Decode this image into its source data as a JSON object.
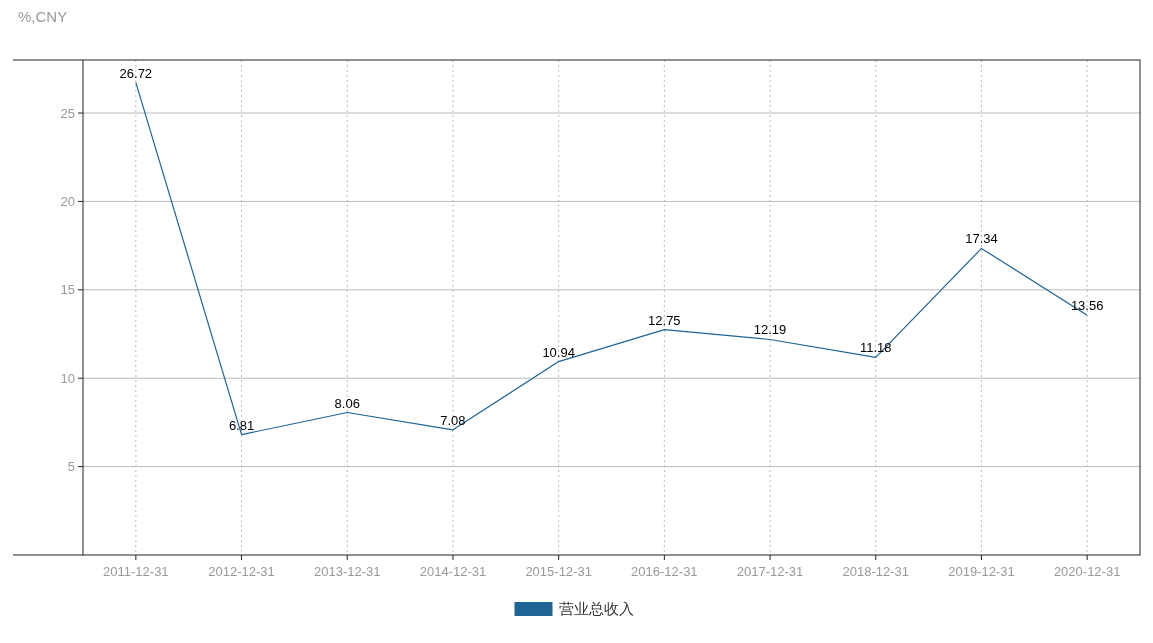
{
  "chart_data": {
    "type": "line",
    "ylabel": "%,CNY",
    "categories": [
      "2011-12-31",
      "2012-12-31",
      "2013-12-31",
      "2014-12-31",
      "2015-12-31",
      "2016-12-31",
      "2017-12-31",
      "2018-12-31",
      "2019-12-31",
      "2020-12-31"
    ],
    "series": [
      {
        "name": "营业总收入",
        "color": "#1f6496",
        "values": [
          26.72,
          6.81,
          8.06,
          7.08,
          10.94,
          12.75,
          12.19,
          11.18,
          17.34,
          13.56
        ]
      }
    ],
    "ylim": [
      0,
      28
    ],
    "yticks": [
      5,
      10,
      15,
      20,
      25
    ],
    "grid": true,
    "legend": "bottom",
    "data_labels": true
  }
}
